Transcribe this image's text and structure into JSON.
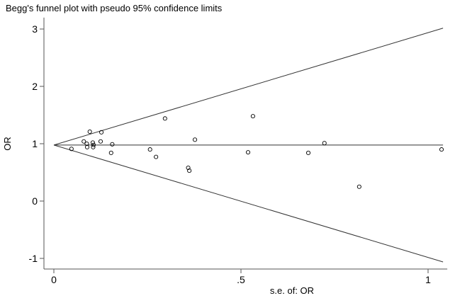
{
  "chart_data": {
    "type": "scatter",
    "title": "Begg's funnel plot with pseudo 95% confidence limits",
    "xlabel": "s.e. of: OR",
    "ylabel": "OR",
    "xlim": [
      0,
      1.04
    ],
    "ylim": [
      -1.2,
      3.1
    ],
    "xticks": [
      {
        "value": 0,
        "label": "0"
      },
      {
        "value": 0.5,
        "label": ".5"
      },
      {
        "value": 1,
        "label": "1"
      }
    ],
    "yticks": [
      {
        "value": -1,
        "label": "-1"
      },
      {
        "value": 0,
        "label": "0"
      },
      {
        "value": 1,
        "label": "1"
      },
      {
        "value": 2,
        "label": "2"
      },
      {
        "value": 3,
        "label": "3"
      }
    ],
    "pooled_estimate": 0.977,
    "confidence_z": 1.96,
    "grid": false,
    "points": [
      {
        "x": 0.047,
        "y": 0.91
      },
      {
        "x": 0.08,
        "y": 1.04
      },
      {
        "x": 0.088,
        "y": 1.0
      },
      {
        "x": 0.089,
        "y": 0.94
      },
      {
        "x": 0.096,
        "y": 1.21
      },
      {
        "x": 0.104,
        "y": 1.02
      },
      {
        "x": 0.106,
        "y": 0.98
      },
      {
        "x": 0.105,
        "y": 0.94
      },
      {
        "x": 0.125,
        "y": 1.04
      },
      {
        "x": 0.127,
        "y": 1.2
      },
      {
        "x": 0.156,
        "y": 0.99
      },
      {
        "x": 0.153,
        "y": 0.84
      },
      {
        "x": 0.297,
        "y": 1.44
      },
      {
        "x": 0.257,
        "y": 0.9
      },
      {
        "x": 0.273,
        "y": 0.77
      },
      {
        "x": 0.377,
        "y": 1.07
      },
      {
        "x": 0.359,
        "y": 0.58
      },
      {
        "x": 0.362,
        "y": 0.53
      },
      {
        "x": 0.519,
        "y": 0.85
      },
      {
        "x": 0.532,
        "y": 1.48
      },
      {
        "x": 0.68,
        "y": 0.84
      },
      {
        "x": 0.723,
        "y": 1.01
      },
      {
        "x": 0.816,
        "y": 0.25
      },
      {
        "x": 1.036,
        "y": 0.9
      }
    ],
    "colors": {
      "line": "#333333",
      "marker": "#000000"
    }
  }
}
